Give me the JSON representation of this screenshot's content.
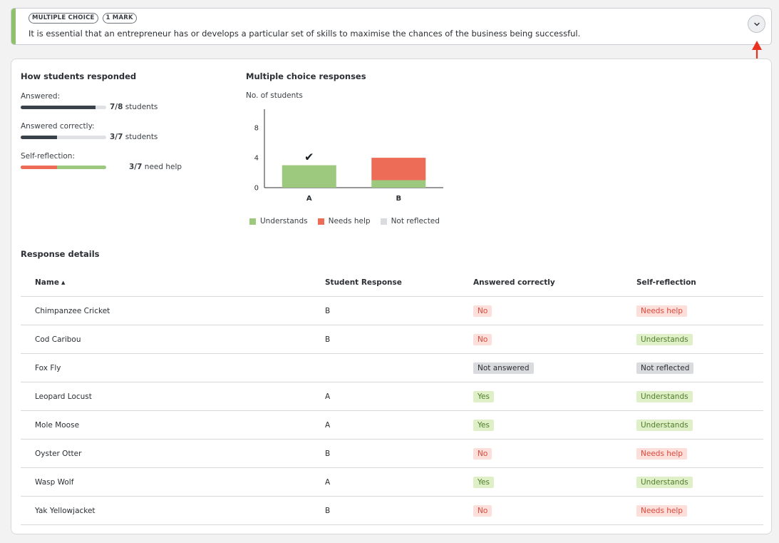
{
  "question": {
    "tags": [
      "MULTIPLE CHOICE",
      "1 MARK"
    ],
    "text": "It is essential that an entrepreneur has or develops a particular set of skills to maximise the chances of the business being successful."
  },
  "how": {
    "title": "How students responded",
    "answered": {
      "label": "Answered:",
      "num": "7/8",
      "suffix": " students",
      "fraction": 0.875
    },
    "correct": {
      "label": "Answered correctly:",
      "num": "3/7",
      "suffix": " students",
      "fraction": 0.4286
    },
    "reflection": {
      "label": "Self-reflection:",
      "num": "3/7",
      "suffix": " need help",
      "fraction": 0.4286
    }
  },
  "mc": {
    "title": "Multiple choice responses"
  },
  "chart_data": {
    "type": "bar",
    "stacked": true,
    "ylabel": "No. of students",
    "yticks": [
      0,
      4,
      8
    ],
    "ylim": [
      0,
      10.5
    ],
    "categories": [
      "A",
      "B"
    ],
    "correct_category": "A",
    "series": [
      {
        "name": "Understands",
        "color": "#9cc97d",
        "values": [
          3,
          1
        ]
      },
      {
        "name": "Needs help",
        "color": "#ec6c58",
        "values": [
          0,
          3
        ]
      },
      {
        "name": "Not reflected",
        "color": "#d9dbde",
        "values": [
          0,
          0
        ]
      }
    ]
  },
  "legend": [
    {
      "label": "Understands",
      "color": "#9cc97d"
    },
    {
      "label": "Needs help",
      "color": "#ec6c58"
    },
    {
      "label": "Not reflected",
      "color": "#d9dbde"
    }
  ],
  "details": {
    "title": "Response details",
    "headers": {
      "name": "Name",
      "response": "Student Response",
      "correct": "Answered correctly",
      "reflection": "Self-reflection"
    },
    "rows": [
      {
        "name": "Chimpanzee Cricket",
        "response": "B",
        "correct": "No",
        "correct_style": "red",
        "reflection": "Needs help",
        "reflection_style": "red"
      },
      {
        "name": "Cod Caribou",
        "response": "B",
        "correct": "No",
        "correct_style": "red",
        "reflection": "Understands",
        "reflection_style": "green"
      },
      {
        "name": "Fox Fly",
        "response": "",
        "correct": "Not answered",
        "correct_style": "grey",
        "reflection": "Not reflected",
        "reflection_style": "grey"
      },
      {
        "name": "Leopard Locust",
        "response": "A",
        "correct": "Yes",
        "correct_style": "green",
        "reflection": "Understands",
        "reflection_style": "green"
      },
      {
        "name": "Mole Moose",
        "response": "A",
        "correct": "Yes",
        "correct_style": "green",
        "reflection": "Understands",
        "reflection_style": "green"
      },
      {
        "name": "Oyster Otter",
        "response": "B",
        "correct": "No",
        "correct_style": "red",
        "reflection": "Needs help",
        "reflection_style": "red"
      },
      {
        "name": "Wasp Wolf",
        "response": "A",
        "correct": "Yes",
        "correct_style": "green",
        "reflection": "Understands",
        "reflection_style": "green"
      },
      {
        "name": "Yak Yellowjacket",
        "response": "B",
        "correct": "No",
        "correct_style": "red",
        "reflection": "Needs help",
        "reflection_style": "red"
      }
    ]
  },
  "colors": {
    "accent": "#8fc06c",
    "dark_bar": "#39424b",
    "annotation": "#e8321f"
  },
  "icons": {
    "expand": "chevron-down-icon",
    "sort": "sort-asc-icon",
    "check": "checkmark-icon",
    "annotation": "red-arrow-icon"
  }
}
